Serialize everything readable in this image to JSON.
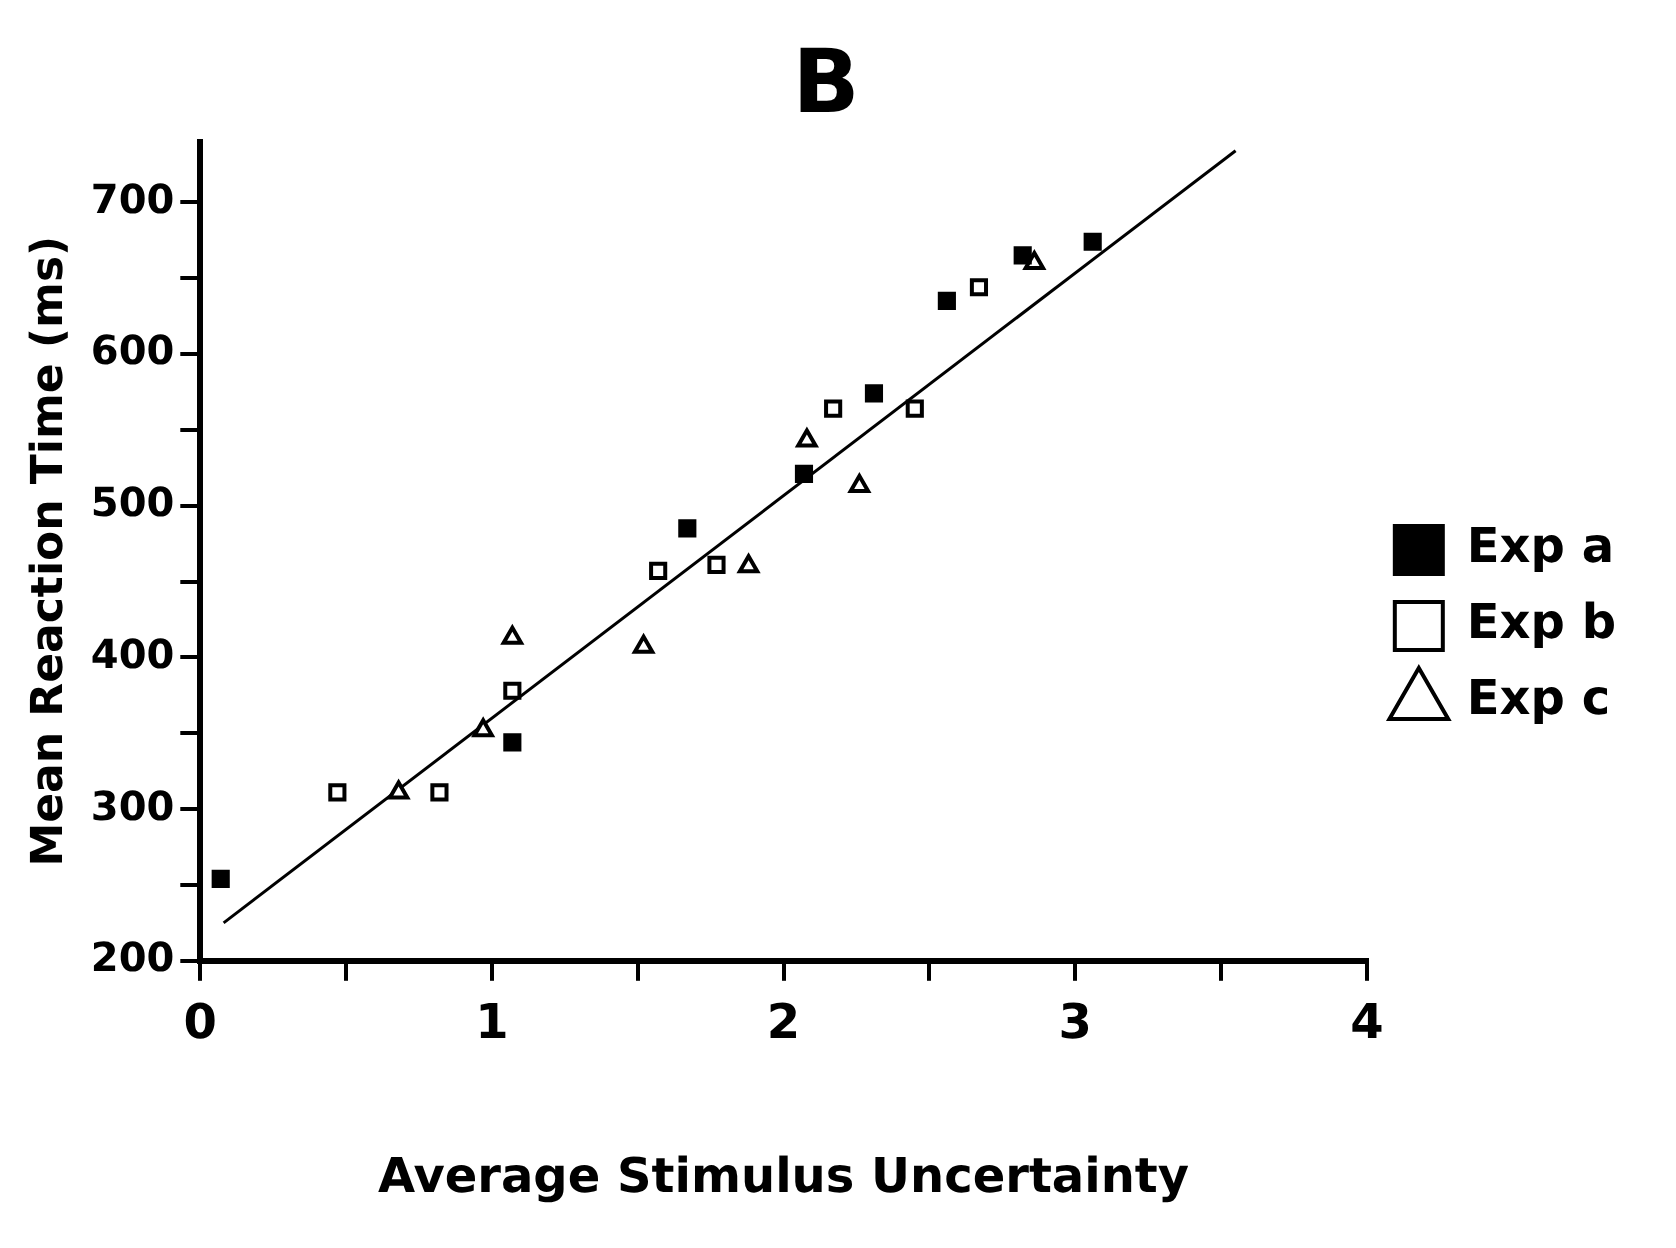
{
  "chart_data": {
    "type": "scatter",
    "title": "B",
    "xlabel": "Average Stimulus Uncertainty",
    "ylabel": "Mean Reaction Time (ms)",
    "xlim": [
      0,
      4
    ],
    "xticks": [
      0,
      {
        "value": 0.5,
        "label": null
      },
      1,
      {
        "value": 1.5,
        "label": null
      },
      2,
      {
        "value": 2.5,
        "label": null
      },
      3,
      {
        "value": 3.5,
        "label": null
      },
      4
    ],
    "ylim": [
      200,
      740
    ],
    "yticks": [
      200,
      {
        "value": 250,
        "label": null
      },
      300,
      {
        "value": 350,
        "label": null
      },
      400,
      {
        "value": 450,
        "label": null
      },
      500,
      {
        "value": 550,
        "label": null
      },
      600,
      {
        "value": 650,
        "label": null
      },
      700
    ],
    "legend": "right",
    "grid": false,
    "series": [
      {
        "name": "Exp a",
        "color": "#000000",
        "marker": "square",
        "x": [
          0.07,
          1.07,
          1.67,
          2.07,
          2.31,
          2.56,
          2.82,
          3.06
        ],
        "values": [
          254,
          344,
          485,
          521,
          574,
          635,
          665,
          674
        ]
      },
      {
        "name": "Exp b",
        "color": "#ffffff",
        "marker": "square",
        "x": [
          0.47,
          0.82,
          1.07,
          1.57,
          1.77,
          2.17,
          2.45,
          2.67
        ],
        "values": [
          311,
          311,
          378,
          457,
          461,
          564,
          564,
          644
        ]
      },
      {
        "name": "Exp c",
        "color": "#ffffff",
        "marker": "triangle",
        "x": [
          0.68,
          0.97,
          1.07,
          1.52,
          1.88,
          2.08,
          2.26,
          2.86
        ],
        "values": [
          311,
          352,
          413,
          407,
          460,
          543,
          513,
          660
        ]
      },
      {
        "type": "line",
        "color": "#000000",
        "marker": "none",
        "line_style": "solid",
        "x": [
          0.08,
          3.55
        ],
        "values": [
          225,
          734
        ]
      }
    ]
  }
}
